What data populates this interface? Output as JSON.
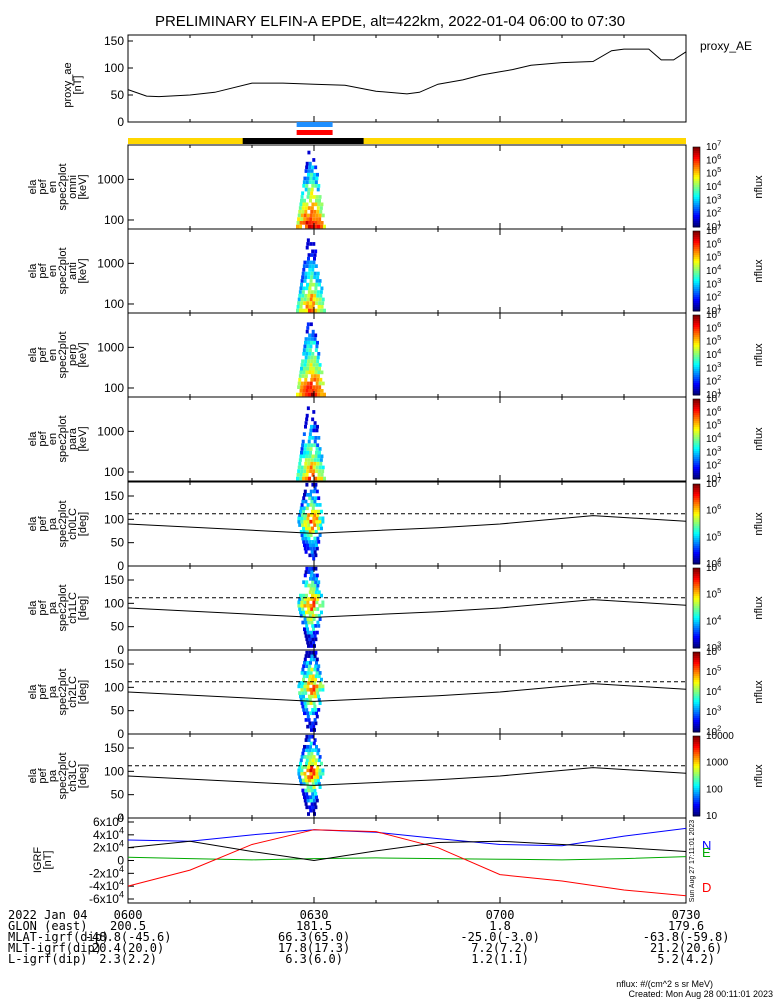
{
  "title": "PRELIMINARY ELFIN-A EPDE, alt=422km, 2022-01-04 06:00 to 07:30",
  "time_ticks": [
    "0600",
    "0630",
    "0700",
    "0730"
  ],
  "proxy_panel": {
    "ylabel_1": "proxy_ae",
    "ylabel_2": "[nT]",
    "legend": "proxy_AE",
    "ticks": [
      "0",
      "50",
      "100",
      "150"
    ]
  },
  "spec_panels": [
    {
      "ylabel": [
        "ela",
        "pef",
        "en",
        "spec2plot",
        "omni",
        "[keV]"
      ],
      "ticks": [
        "100",
        "1000"
      ],
      "zunit": "nflux",
      "zticks": [
        "10^1",
        "10^2",
        "10^3",
        "10^4",
        "10^5",
        "10^6",
        "10^7"
      ]
    },
    {
      "ylabel": [
        "ela",
        "pef",
        "en",
        "spec2plot",
        "anti",
        "[keV]"
      ],
      "ticks": [
        "100",
        "1000"
      ],
      "zunit": "nflux",
      "zticks": [
        "10^1",
        "10^2",
        "10^3",
        "10^4",
        "10^5",
        "10^6",
        "10^7"
      ]
    },
    {
      "ylabel": [
        "ela",
        "pef",
        "en",
        "spec2plot",
        "perp",
        "[keV]"
      ],
      "ticks": [
        "100",
        "1000"
      ],
      "zunit": "nflux",
      "zticks": [
        "10^1",
        "10^2",
        "10^3",
        "10^4",
        "10^5",
        "10^6",
        "10^7"
      ]
    },
    {
      "ylabel": [
        "ela",
        "pef",
        "en",
        "spec2plot",
        "para",
        "[keV]"
      ],
      "ticks": [
        "100",
        "1000"
      ],
      "zunit": "nflux",
      "zticks": [
        "10^1",
        "10^2",
        "10^3",
        "10^4",
        "10^5",
        "10^6",
        "10^7"
      ]
    }
  ],
  "pa_panels": [
    {
      "ylabel": [
        "ela",
        "pef",
        "pa",
        "spec2plot",
        "ch0LC",
        "[deg]"
      ],
      "ticks": [
        "0",
        "50",
        "100",
        "150"
      ],
      "zunit": "nflux",
      "zticks": [
        "10^4",
        "10^5",
        "10^6",
        "10^7"
      ]
    },
    {
      "ylabel": [
        "ela",
        "pef",
        "pa",
        "spec2plot",
        "ch1LC",
        "[deg]"
      ],
      "ticks": [
        "0",
        "50",
        "100",
        "150"
      ],
      "zunit": "nflux",
      "zticks": [
        "10^3",
        "10^4",
        "10^5",
        "10^6"
      ]
    },
    {
      "ylabel": [
        "ela",
        "pef",
        "pa",
        "spec2plot",
        "ch2LC",
        "[deg]"
      ],
      "ticks": [
        "0",
        "50",
        "100",
        "150"
      ],
      "zunit": "nflux",
      "zticks": [
        "10^2",
        "10^3",
        "10^4",
        "10^5",
        "10^6"
      ]
    },
    {
      "ylabel": [
        "ela",
        "pef",
        "pa",
        "spec2plot",
        "ch3LC",
        "[deg]"
      ],
      "ticks": [
        "0",
        "50",
        "100",
        "150"
      ],
      "zunit": "nflux",
      "zticks": [
        "10",
        "100",
        "1000",
        "10000"
      ]
    }
  ],
  "igrf_panel": {
    "ylabel_1": "IGRF",
    "ylabel_2": "[nT]",
    "ticks": [
      "-6x10^4",
      "-4x10^4",
      "-2x10^4",
      "0",
      "2x10^4",
      "4x10^4",
      "6x10^4"
    ],
    "legend": [
      {
        "name": "N",
        "color": "#0000ff"
      },
      {
        "name": "E",
        "color": "#00aa00"
      },
      {
        "name": "D",
        "color": "#ff0000"
      }
    ],
    "side_note": "Sun Aug 27 17:11:01 2023"
  },
  "colors": {
    "yellow_bar": "#ffd700",
    "black_bar": "#000000",
    "blue_bar": "#1f8fff",
    "red_bar": "#ff0000"
  },
  "footer_rows": [
    {
      "label": "2022 Jan 04",
      "values": [
        "0600",
        "0630",
        "0700",
        "0730"
      ]
    },
    {
      "label": "GLON (east)",
      "values": [
        "200.5",
        "181.5",
        "1.8",
        "179.6"
      ]
    },
    {
      "label": "MLAT-igrf(dip)",
      "values": [
        "-48.8(-45.6)",
        "66.3(65.0)",
        "-25.0(-3.0)",
        "-63.8(-59.8)"
      ]
    },
    {
      "label": "MLT-igrf(dip)",
      "values": [
        "20.4(20.0)",
        "17.8(17.3)",
        "7.2(7.2)",
        "21.2(20.6)"
      ]
    },
    {
      "label": "L-igrf(dip)",
      "values": [
        "2.3(2.2)",
        "6.3(6.0)",
        "1.2(1.1)",
        "5.2(4.2)"
      ]
    }
  ],
  "units_note": "nflux: #/(cm^2 s sr MeV)",
  "created_note": "Created: Mon Aug 28 00:11:01 2023",
  "chart_data": {
    "type": "line",
    "title": "PRELIMINARY ELFIN-A EPDE, alt=422km, 2022-01-04 06:00 to 07:30",
    "x_range": [
      "06:00",
      "07:30"
    ],
    "proxy_ae": {
      "name": "proxy_AE",
      "ylim": [
        0,
        150
      ],
      "x_min": [
        0,
        3,
        5,
        10,
        14,
        20,
        25,
        30,
        35,
        40,
        45,
        47,
        50,
        54,
        57,
        60,
        62,
        65,
        70,
        75,
        78,
        80,
        84,
        86,
        88,
        90
      ],
      "values": [
        60,
        48,
        47,
        50,
        55,
        72,
        72,
        70,
        68,
        57,
        52,
        55,
        70,
        78,
        87,
        93,
        97,
        105,
        110,
        112,
        132,
        135,
        135,
        115,
        115,
        130
      ]
    },
    "energy_spectrograms": {
      "energy_range_keV": [
        60,
        7000
      ],
      "zlim": [
        10,
        10000000
      ],
      "panels": [
        "omni",
        "anti",
        "perp",
        "para"
      ],
      "observation_window": [
        "06:25",
        "06:32"
      ]
    },
    "pitch_angle_spectrograms": {
      "ylim": [
        0,
        180
      ],
      "panels": [
        "ch0LC",
        "ch1LC",
        "ch2LC",
        "ch3LC"
      ],
      "loss_cone_dashed_deg": 112,
      "solid_line_x_min": [
        0,
        30,
        50,
        60,
        75,
        85,
        90
      ],
      "solid_line_deg": [
        90,
        70,
        82,
        90,
        108,
        100,
        96
      ]
    },
    "igrf": {
      "ylim": [
        -60000,
        60000
      ],
      "x_min": [
        0,
        10,
        20,
        30,
        40,
        50,
        60,
        70,
        80,
        90
      ],
      "series": [
        {
          "name": "N",
          "values": [
            32000,
            30000,
            40000,
            48000,
            44000,
            34000,
            25000,
            23000,
            38000,
            50000
          ]
        },
        {
          "name": "E",
          "values": [
            5000,
            3000,
            1000,
            3000,
            4000,
            3000,
            2000,
            1000,
            3000,
            6000
          ]
        },
        {
          "name": "D",
          "values": [
            -40000,
            -15000,
            25000,
            48000,
            45000,
            20000,
            -22000,
            -32000,
            -46000,
            -55000
          ]
        }
      ],
      "N_values_dark": [
        20000,
        30000,
        14000,
        0,
        15000,
        28000,
        30000,
        25000,
        20000,
        14000
      ]
    }
  }
}
